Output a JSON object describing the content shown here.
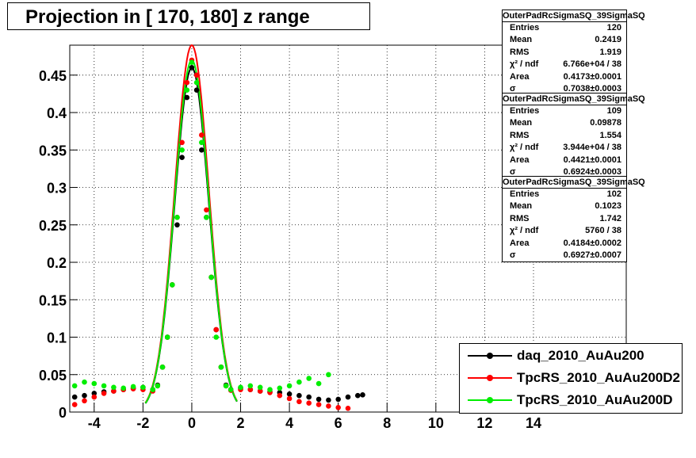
{
  "title": "Projection in [ 170, 180] z range",
  "stats_boxes": [
    {
      "name": "OuterPadRcSigmaSQ_39SigmaSQ",
      "rows": [
        {
          "label": "Entries",
          "value": "120"
        },
        {
          "label": "Mean",
          "value": "0.2419"
        },
        {
          "label": "RMS",
          "value": "1.919"
        },
        {
          "label": "χ² / ndf",
          "value": "6.766e+04 / 38"
        },
        {
          "label": "Area",
          "value": "0.4173±0.0001"
        },
        {
          "label": "σ",
          "value": "0.7038±0.0003"
        }
      ]
    },
    {
      "name": "OuterPadRcSigmaSQ_39SigmaSQ",
      "rows": [
        {
          "label": "Entries",
          "value": "109"
        },
        {
          "label": "Mean",
          "value": "0.09878"
        },
        {
          "label": "RMS",
          "value": "1.554"
        },
        {
          "label": "χ² / ndf",
          "value": "3.944e+04 / 38"
        },
        {
          "label": "Area",
          "value": "0.4421±0.0001"
        },
        {
          "label": "σ",
          "value": "0.6924±0.0003"
        }
      ]
    },
    {
      "name": "OuterPadRcSigmaSQ_39SigmaSQ",
      "rows": [
        {
          "label": "Entries",
          "value": "102"
        },
        {
          "label": "Mean",
          "value": "0.1023"
        },
        {
          "label": "RMS",
          "value": "1.742"
        },
        {
          "label": "χ² / ndf",
          "value": "5760 / 38"
        },
        {
          "label": "Area",
          "value": "0.4184±0.0002"
        },
        {
          "label": "σ",
          "value": "0.6927±0.0007"
        }
      ]
    }
  ],
  "colors": {
    "daq": "#000000",
    "d2": "#ff0000",
    "d": "#00ee00"
  },
  "chart_data": {
    "type": "scatter",
    "title": "Projection in [ 170, 180] z range",
    "xlim": [
      -5,
      17.8
    ],
    "ylim": [
      0,
      0.49
    ],
    "x_ticks": [
      -4,
      -2,
      0,
      2,
      4,
      6,
      8,
      10,
      12,
      14
    ],
    "x_tick_labels": [
      "-4",
      "-2",
      "0",
      "2",
      "4",
      "6",
      "8",
      "10",
      "12",
      "14"
    ],
    "y_ticks": [
      0,
      0.05,
      0.1,
      0.15,
      0.2,
      0.25,
      0.3,
      0.35,
      0.4,
      0.45
    ],
    "y_tick_labels": [
      "0",
      "0.05",
      "0.1",
      "0.15",
      "0.2",
      "0.25",
      "0.3",
      "0.35",
      "0.4",
      "0.45"
    ],
    "grid": true,
    "legend_position": "bottom-right",
    "series": [
      {
        "name": "daq_2010_AuAu200",
        "color": "#000000",
        "peak": 0.46,
        "points": [
          [
            -4.8,
            0.02
          ],
          [
            -4.4,
            0.022
          ],
          [
            -4.0,
            0.025
          ],
          [
            -3.6,
            0.027
          ],
          [
            -3.2,
            0.028
          ],
          [
            -2.8,
            0.03
          ],
          [
            -2.4,
            0.032
          ],
          [
            -2.0,
            0.033
          ],
          [
            -1.6,
            0.03
          ],
          [
            -1.4,
            0.036
          ],
          [
            -1.2,
            0.06
          ],
          [
            -1.0,
            0.1
          ],
          [
            -0.8,
            0.17
          ],
          [
            -0.6,
            0.25
          ],
          [
            -0.4,
            0.34
          ],
          [
            -0.2,
            0.42
          ],
          [
            0.0,
            0.46
          ],
          [
            0.2,
            0.43
          ],
          [
            0.4,
            0.35
          ],
          [
            0.6,
            0.26
          ],
          [
            0.8,
            0.18
          ],
          [
            1.0,
            0.11
          ],
          [
            1.2,
            0.06
          ],
          [
            1.4,
            0.036
          ],
          [
            1.6,
            0.03
          ],
          [
            2.0,
            0.032
          ],
          [
            2.4,
            0.03
          ],
          [
            2.8,
            0.028
          ],
          [
            3.2,
            0.027
          ],
          [
            3.6,
            0.026
          ],
          [
            4.0,
            0.024
          ],
          [
            4.4,
            0.022
          ],
          [
            4.8,
            0.02
          ],
          [
            5.2,
            0.017
          ],
          [
            5.6,
            0.016
          ],
          [
            6.0,
            0.017
          ],
          [
            6.4,
            0.02
          ],
          [
            6.8,
            0.022
          ],
          [
            7.0,
            0.023
          ]
        ]
      },
      {
        "name": "TpcRS_2010_AuAu200D2",
        "color": "#ff0000",
        "peak": 0.49,
        "points": [
          [
            -4.8,
            0.01
          ],
          [
            -4.4,
            0.015
          ],
          [
            -4.0,
            0.02
          ],
          [
            -3.6,
            0.025
          ],
          [
            -3.2,
            0.028
          ],
          [
            -2.8,
            0.03
          ],
          [
            -2.4,
            0.031
          ],
          [
            -2.0,
            0.03
          ],
          [
            -1.6,
            0.028
          ],
          [
            -1.4,
            0.035
          ],
          [
            -1.2,
            0.06
          ],
          [
            -1.0,
            0.1
          ],
          [
            -0.8,
            0.17
          ],
          [
            -0.6,
            0.26
          ],
          [
            -0.4,
            0.36
          ],
          [
            -0.2,
            0.44
          ],
          [
            0.0,
            0.47
          ],
          [
            0.2,
            0.45
          ],
          [
            0.4,
            0.37
          ],
          [
            0.6,
            0.27
          ],
          [
            0.8,
            0.18
          ],
          [
            1.0,
            0.11
          ],
          [
            1.2,
            0.06
          ],
          [
            1.4,
            0.035
          ],
          [
            1.6,
            0.029
          ],
          [
            2.0,
            0.03
          ],
          [
            2.4,
            0.03
          ],
          [
            2.8,
            0.028
          ],
          [
            3.2,
            0.026
          ],
          [
            3.6,
            0.022
          ],
          [
            4.0,
            0.018
          ],
          [
            4.4,
            0.014
          ],
          [
            4.8,
            0.012
          ],
          [
            5.2,
            0.01
          ],
          [
            5.6,
            0.008
          ],
          [
            6.0,
            0.006
          ],
          [
            6.4,
            0.005
          ]
        ]
      },
      {
        "name": "TpcRS_2010_AuAu200D",
        "color": "#00ee00",
        "peak": 0.47,
        "points": [
          [
            -4.8,
            0.035
          ],
          [
            -4.4,
            0.04
          ],
          [
            -4.0,
            0.038
          ],
          [
            -3.6,
            0.035
          ],
          [
            -3.2,
            0.033
          ],
          [
            -2.8,
            0.032
          ],
          [
            -2.4,
            0.034
          ],
          [
            -2.0,
            0.033
          ],
          [
            -1.6,
            0.03
          ],
          [
            -1.4,
            0.035
          ],
          [
            -1.2,
            0.06
          ],
          [
            -1.0,
            0.1
          ],
          [
            -0.8,
            0.17
          ],
          [
            -0.6,
            0.26
          ],
          [
            -0.4,
            0.35
          ],
          [
            -0.2,
            0.43
          ],
          [
            0.0,
            0.467
          ],
          [
            0.2,
            0.44
          ],
          [
            0.4,
            0.36
          ],
          [
            0.6,
            0.26
          ],
          [
            0.8,
            0.18
          ],
          [
            1.0,
            0.1
          ],
          [
            1.2,
            0.06
          ],
          [
            1.4,
            0.035
          ],
          [
            1.6,
            0.03
          ],
          [
            2.0,
            0.033
          ],
          [
            2.4,
            0.035
          ],
          [
            2.8,
            0.033
          ],
          [
            3.2,
            0.03
          ],
          [
            3.6,
            0.032
          ],
          [
            4.0,
            0.035
          ],
          [
            4.4,
            0.04
          ],
          [
            4.8,
            0.045
          ],
          [
            5.2,
            0.038
          ],
          [
            5.6,
            0.05
          ]
        ]
      }
    ]
  },
  "legend": [
    {
      "label": "daq_2010_AuAu200",
      "color": "#000000"
    },
    {
      "label": "TpcRS_2010_AuAu200D2",
      "color": "#ff0000"
    },
    {
      "label": "TpcRS_2010_AuAu200D",
      "color": "#00ee00"
    }
  ]
}
